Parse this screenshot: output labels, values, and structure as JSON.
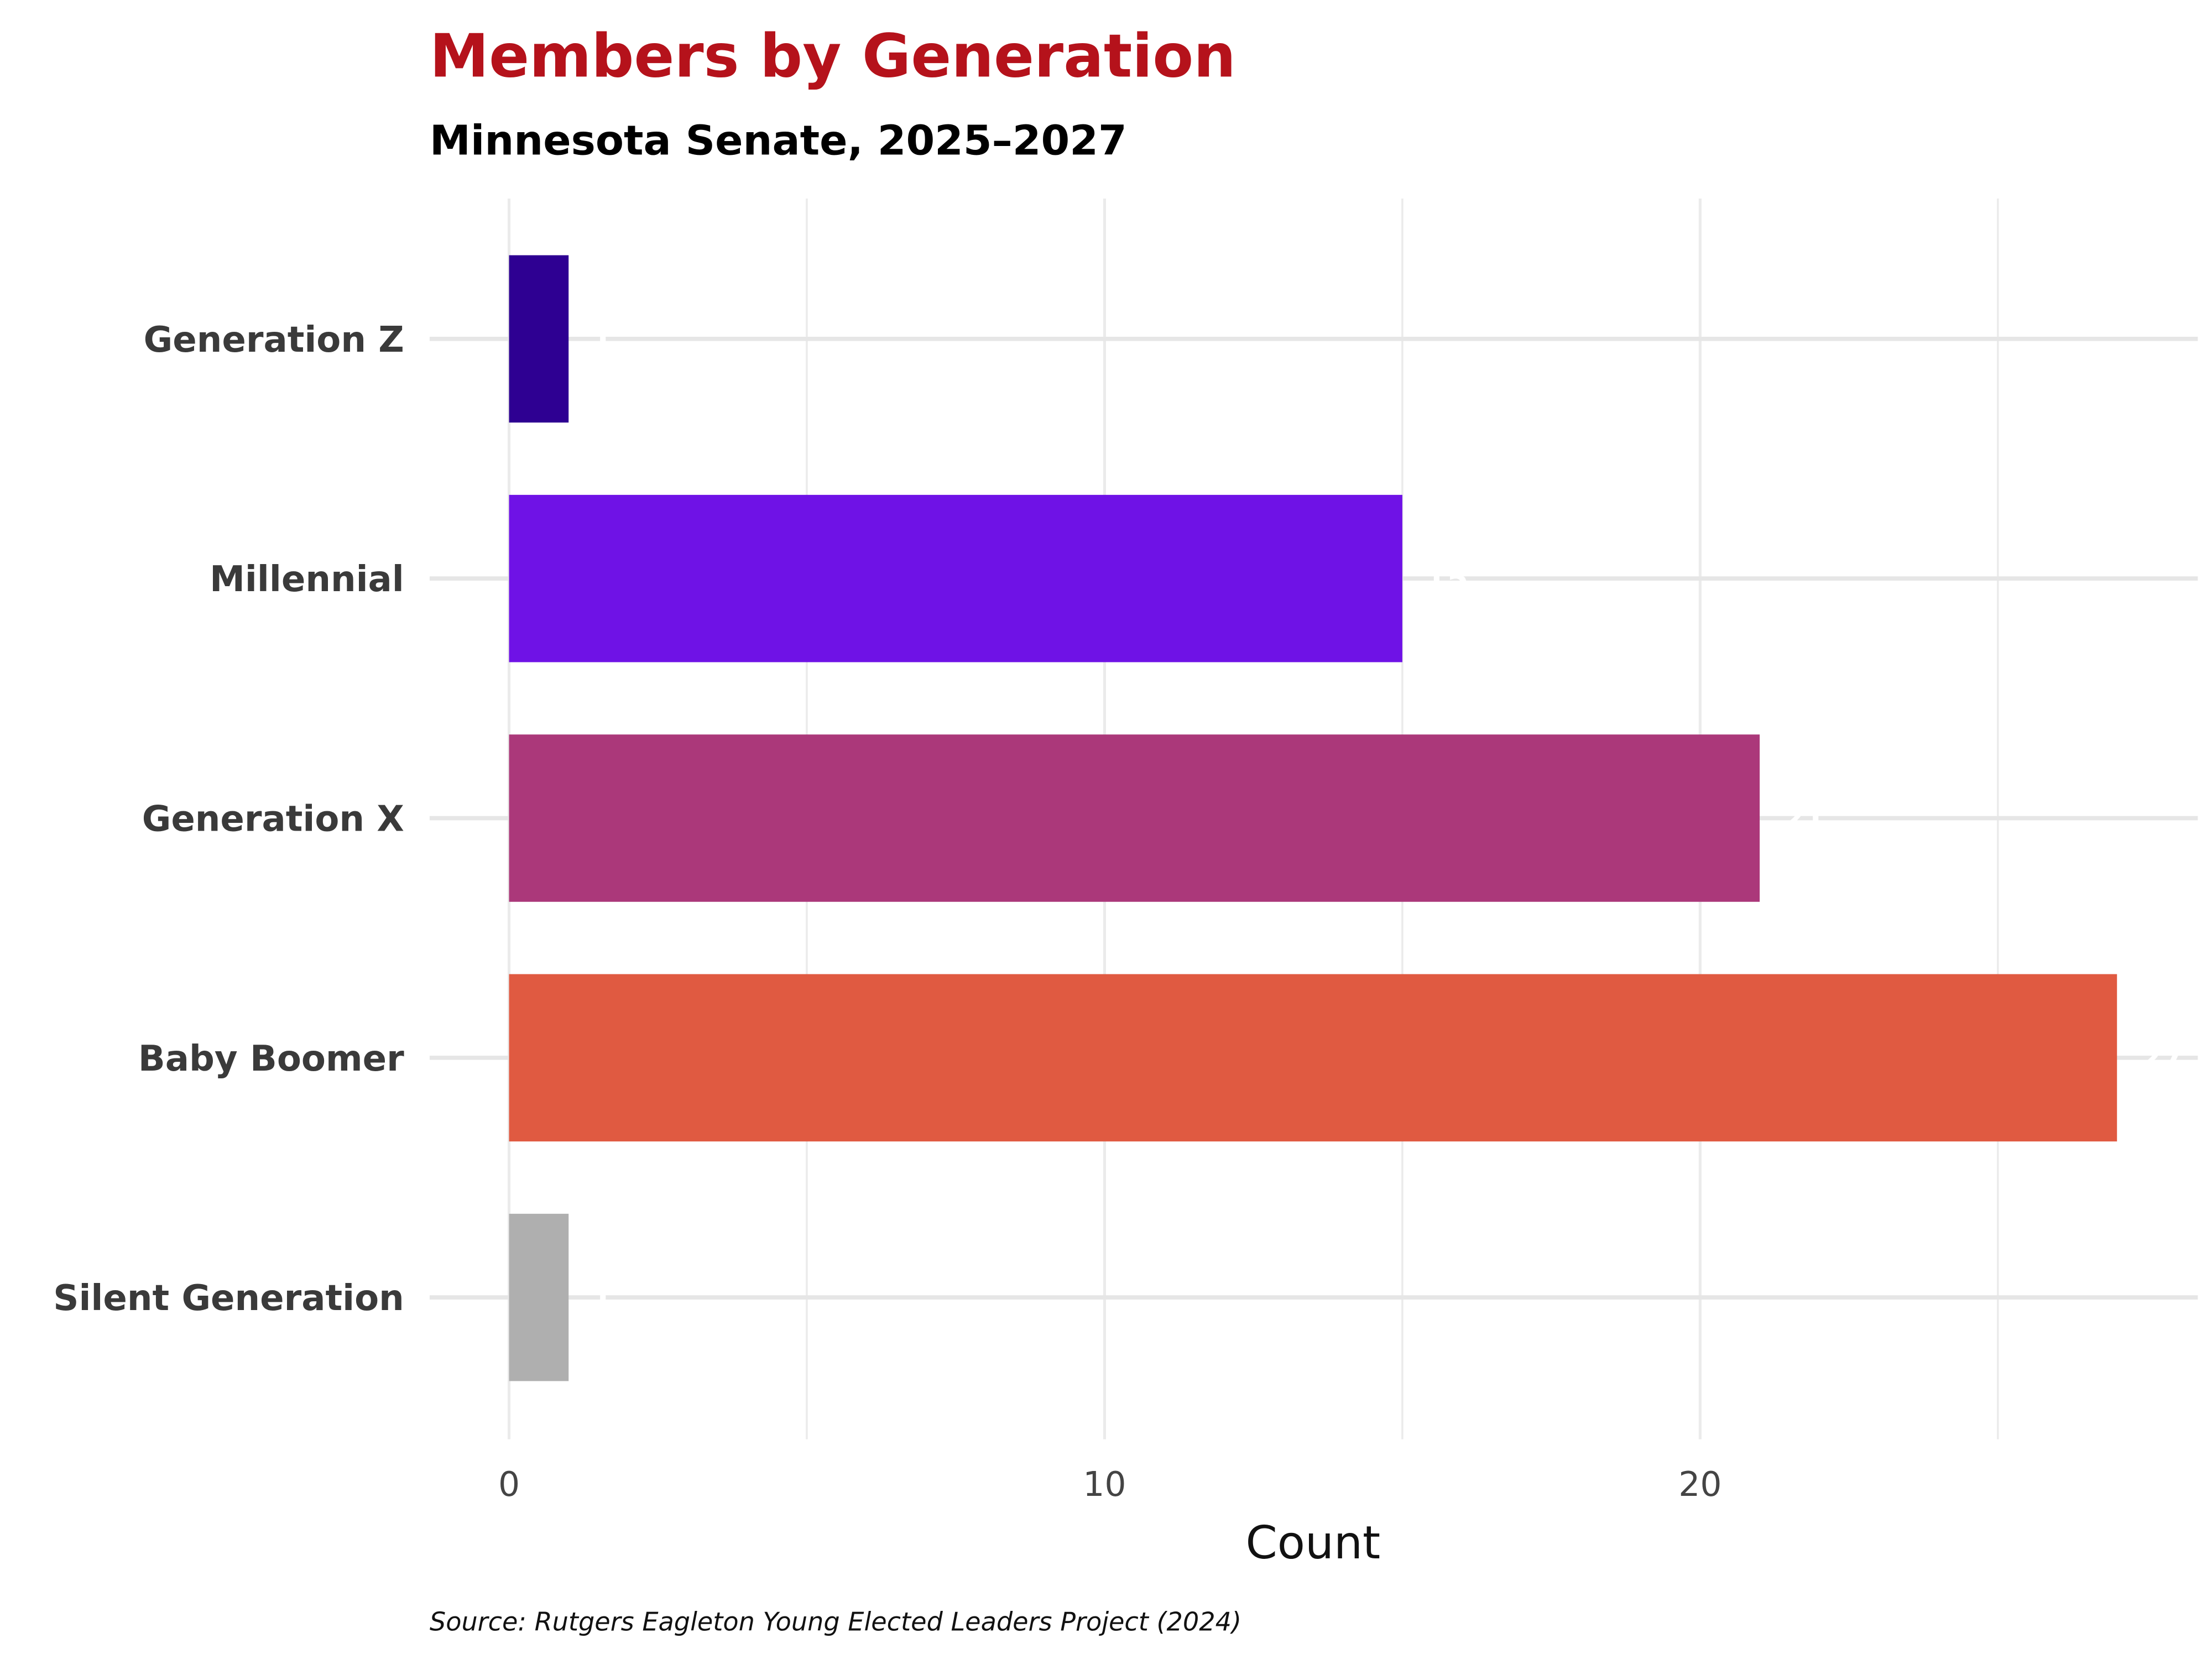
{
  "chart_data": {
    "type": "bar",
    "orientation": "horizontal",
    "title": "Members by Generation",
    "subtitle": "Minnesota Senate, 2025–2027",
    "xlabel": "Count",
    "ylabel": "",
    "caption": "Source: Rutgers Eagleton Young Elected Leaders Project (2024)",
    "categories": [
      "Generation Z",
      "Millennial",
      "Generation X",
      "Baby Boomer",
      "Silent Generation"
    ],
    "values": [
      1,
      15,
      21,
      27,
      1
    ],
    "value_labels": [
      "1",
      "15",
      "21",
      "27",
      "1"
    ],
    "colors": [
      "#2e0092",
      "#6f12e6",
      "#ab387a",
      "#e05a41",
      "#afafaf"
    ],
    "xlim": [
      0,
      28.3
    ],
    "xticks": [
      0,
      10,
      20
    ],
    "xtick_labels": [
      "0",
      "10",
      "20"
    ],
    "grid": true,
    "legend": "none"
  }
}
